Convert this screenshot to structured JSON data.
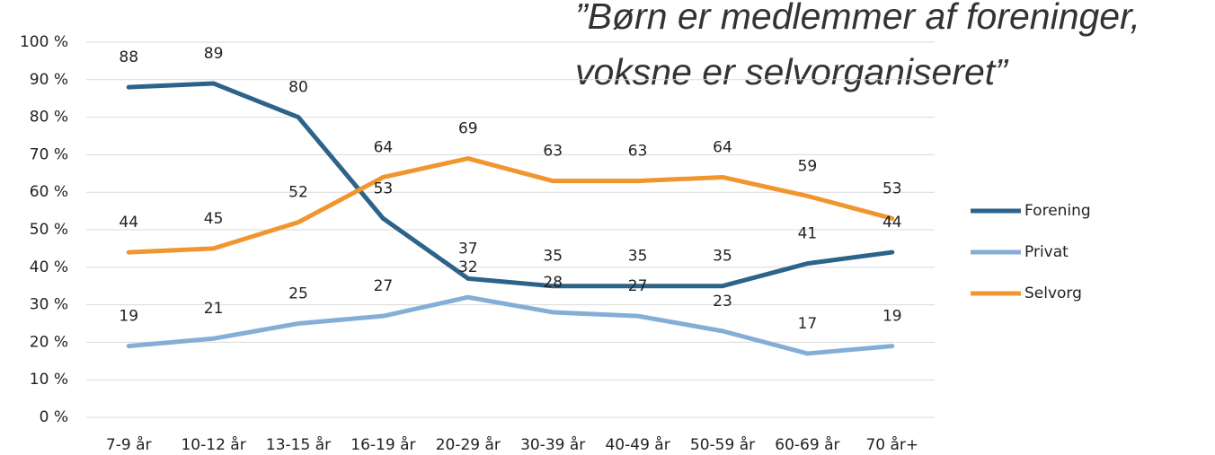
{
  "chart_data": {
    "type": "line",
    "annotation": [
      "”Børn er medlemmer af foreninger,",
      "voksne er selvorganiseret”"
    ],
    "categories": [
      "7-9 år",
      "10-12 år",
      "13-15 år",
      "16-19 år",
      "20-29 år",
      "30-39 år",
      "40-49 år",
      "50-59 år",
      "60-69 år",
      "70 år+"
    ],
    "series": [
      {
        "name": "Forening",
        "color": "#2e6389",
        "values": [
          88,
          89,
          80,
          53,
          37,
          35,
          35,
          35,
          41,
          44
        ]
      },
      {
        "name": "Privat",
        "color": "#84aed6",
        "values": [
          19,
          21,
          25,
          27,
          32,
          28,
          27,
          23,
          17,
          19
        ]
      },
      {
        "name": "Selvorg",
        "color": "#f0962f",
        "values": [
          44,
          45,
          52,
          64,
          69,
          63,
          63,
          64,
          59,
          53
        ]
      }
    ],
    "ylim": [
      0,
      100
    ],
    "yticks": [
      {
        "value": 0,
        "label": "0 %"
      },
      {
        "value": 10,
        "label": "10 %"
      },
      {
        "value": 20,
        "label": "20 %"
      },
      {
        "value": 30,
        "label": "30 %"
      },
      {
        "value": 40,
        "label": "40 %"
      },
      {
        "value": 50,
        "label": "50 %"
      },
      {
        "value": 60,
        "label": "60 %"
      },
      {
        "value": 70,
        "label": "70 %"
      },
      {
        "value": 80,
        "label": "80 %"
      },
      {
        "value": 90,
        "label": "90 %"
      },
      {
        "value": 100,
        "label": "100 %"
      }
    ],
    "grid": true,
    "legend": "right"
  }
}
